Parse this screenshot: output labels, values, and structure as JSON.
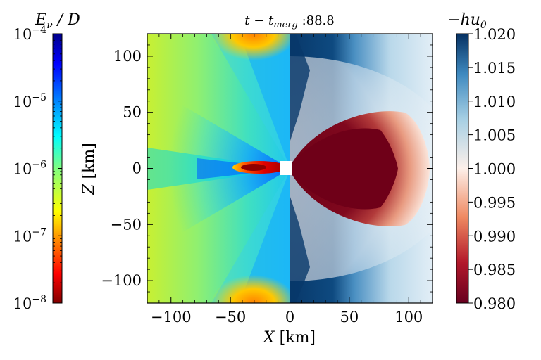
{
  "chart_data": [
    {
      "type": "heatmap",
      "title_prefix": "t − t",
      "title_sub": "merg",
      "title_suffix": " :88.8",
      "xlabel_var": "X",
      "xlabel_unit": " [km]",
      "ylabel_var": "Z",
      "ylabel_unit": " [km]",
      "xlim": [
        -120,
        120
      ],
      "ylim": [
        -120,
        120
      ],
      "x_ticks": [
        -100,
        -50,
        0,
        50,
        100
      ],
      "x_tick_labels": [
        "−100",
        "−50",
        "0",
        "50",
        "100"
      ],
      "y_ticks": [
        100,
        50,
        0,
        -50,
        -100
      ],
      "y_tick_labels": [
        "100",
        "50",
        "0",
        "−50",
        "−100"
      ],
      "panels": [
        {
          "name": "left-half",
          "field": "E_nu/D",
          "x_range": [
            -120,
            0
          ]
        },
        {
          "name": "right-half",
          "field": "-hu_0",
          "x_range": [
            0,
            120
          ]
        }
      ]
    },
    {
      "type": "colorbar",
      "label_var": "E",
      "label_sub": "ν",
      "label_rest": " / D",
      "scale": "log",
      "range": [
        1e-08,
        0.0001
      ],
      "ticks": [
        {
          "base": "10",
          "exp": "−4",
          "value": 0.0001
        },
        {
          "base": "10",
          "exp": "−5",
          "value": 1e-05
        },
        {
          "base": "10",
          "exp": "−6",
          "value": 1e-06
        },
        {
          "base": "10",
          "exp": "−7",
          "value": 1e-07
        },
        {
          "base": "10",
          "exp": "−8",
          "value": 1e-08
        }
      ],
      "colormap": "jet"
    },
    {
      "type": "colorbar",
      "label_prefix": "−hu",
      "label_sub": "0",
      "scale": "linear",
      "range": [
        0.98,
        1.02
      ],
      "ticks": [
        "1.020",
        "1.015",
        "1.010",
        "1.005",
        "1.000",
        "0.995",
        "0.990",
        "0.985",
        "0.980"
      ],
      "colormap": "RdBu"
    }
  ]
}
